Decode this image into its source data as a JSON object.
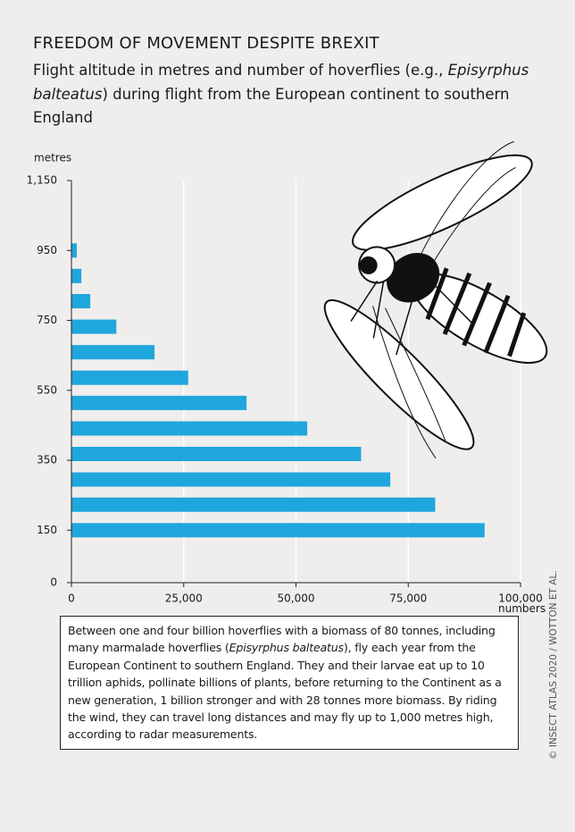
{
  "chart_data": {
    "type": "bar",
    "orientation": "horizontal",
    "title": "FREEDOM OF MOVEMENT DESPITE BREXIT",
    "subtitle_parts": [
      "Flight altitude in metres and number of hoverflies (e.g., ",
      "Episyrphus balteatus",
      ") during flight from the European continent to southern England"
    ],
    "y_label": "metres",
    "x_label": "numbers",
    "y": [
      150,
      223,
      295,
      368,
      441,
      514,
      586,
      659,
      732,
      805,
      877,
      950
    ],
    "values": [
      92000,
      81000,
      71000,
      64500,
      52500,
      39000,
      26000,
      18500,
      10000,
      4200,
      2200,
      1200
    ],
    "color": "#1ea6dd",
    "xlim": [
      0,
      100000
    ],
    "xticks": [
      0,
      {
        "value": 25000,
        "label": "25,000"
      },
      {
        "value": 50000,
        "label": "50,000"
      },
      {
        "value": 75000,
        "label": "75,000"
      },
      {
        "value": 100000,
        "label": "100,000"
      }
    ],
    "ylim": [
      0,
      1150
    ],
    "yticks": [
      0,
      150,
      350,
      550,
      750,
      950,
      {
        "value": 1150,
        "label": "1,150"
      }
    ],
    "grid": true,
    "note_parts": [
      "Between one and four billion hoverflies with a biomass of 80 tonnes, including many marmalade hoverflies (",
      "Episyrphus balteatus",
      "), fly each year from the European Continent to southern England. They and their larvae eat up to 10 trillion aphids, pollinate billions of plants, before returning to the Continent as a new generation, 1 billion stronger and with 28 tonnes more biomass. By riding the wind, they can travel long distances and may fly up to 1,000 metres high, according to radar measurements."
    ],
    "credit": "© INSECT ATLAS 2020 / WOTTON ET AL."
  }
}
